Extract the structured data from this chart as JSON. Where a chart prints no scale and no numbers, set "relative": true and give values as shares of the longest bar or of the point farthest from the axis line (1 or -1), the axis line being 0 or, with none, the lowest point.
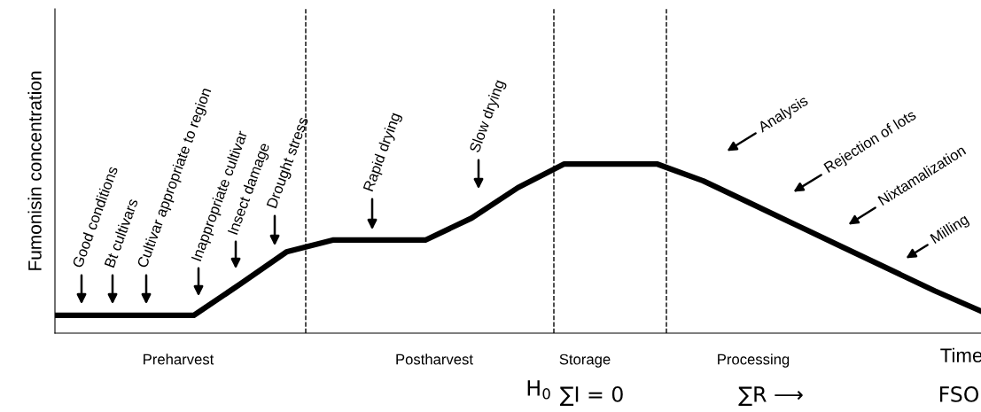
{
  "chart_data": {
    "type": "line",
    "relative": true,
    "ylabel": "Fumonisin concentration",
    "xlabel": "Time",
    "categories": [
      null,
      null,
      null,
      null,
      null,
      null,
      null,
      null,
      null,
      null,
      null,
      null,
      null,
      null,
      null,
      null,
      null,
      null,
      null,
      null,
      null
    ],
    "series": [
      {
        "color": "#000000",
        "values": [
          0.105,
          0.105,
          0.105,
          0.105,
          0.29,
          0.48,
          0.55,
          0.55,
          0.55,
          0.68,
          0.86,
          1,
          1,
          1,
          0.9,
          0.77,
          0.64,
          0.51,
          0.38,
          0.25,
          0.13
        ]
      }
    ],
    "annotations": [
      "Good conditions",
      "Bt cultivars",
      "Cultivar appropriate to region",
      "Inappropriate cultivar",
      "Insect damage",
      "Drought stress",
      "Rapid drying",
      "Slow drying",
      "Analysis",
      "Rejection of lots",
      "Nixtamalization",
      "Milling",
      "Preharvest",
      "Postharvest",
      "Storage",
      "Processing",
      "H$_{0}$",
      "∑I = 0",
      "∑R ⟶",
      "FSO"
    ],
    "grid": false,
    "legend": false,
    "marker": "none",
    "line_style": "solid"
  }
}
